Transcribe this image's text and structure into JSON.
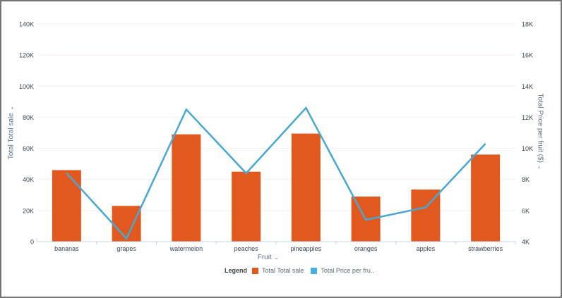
{
  "chart_data": {
    "type": "combo",
    "categories": [
      "bananas",
      "grapes",
      "watermelon",
      "peaches",
      "pineapples",
      "oranges",
      "apples",
      "strawberries"
    ],
    "series": [
      {
        "name": "Total Total sale",
        "type": "bar",
        "axis": "left",
        "color": "#e2591f",
        "values": [
          46000,
          23000,
          69000,
          45000,
          69500,
          29000,
          33500,
          56000
        ]
      },
      {
        "name": "Total Price per fruit ($)",
        "type": "line",
        "axis": "right",
        "color": "#45a8d5",
        "values": [
          8400,
          4200,
          12500,
          8400,
          12600,
          5400,
          6200,
          10300
        ]
      }
    ],
    "x_axis": {
      "title": "Fruit",
      "caret": "⌄"
    },
    "left_axis": {
      "title": "Total Total sale",
      "caret": "⌄",
      "min": 0,
      "max": 140000,
      "tick_labels": [
        "0",
        "20K",
        "40K",
        "60K",
        "80K",
        "100K",
        "120K",
        "140K"
      ]
    },
    "right_axis": {
      "title": "Total Price per fruit ($)",
      "caret": "⌄",
      "min": 4000,
      "max": 18000,
      "tick_labels": [
        "4K",
        "6K",
        "8K",
        "10K",
        "12K",
        "14K",
        "16K",
        "18K"
      ]
    },
    "legend": {
      "label": "Legend",
      "items": [
        {
          "label": "Total Total sale",
          "color": "#e2591f"
        },
        {
          "label": "Total Price per fru..",
          "color": "#43b0df"
        }
      ]
    },
    "grid": {
      "color": "#f7eeef",
      "baseline_color": "#c5d4e6"
    }
  }
}
